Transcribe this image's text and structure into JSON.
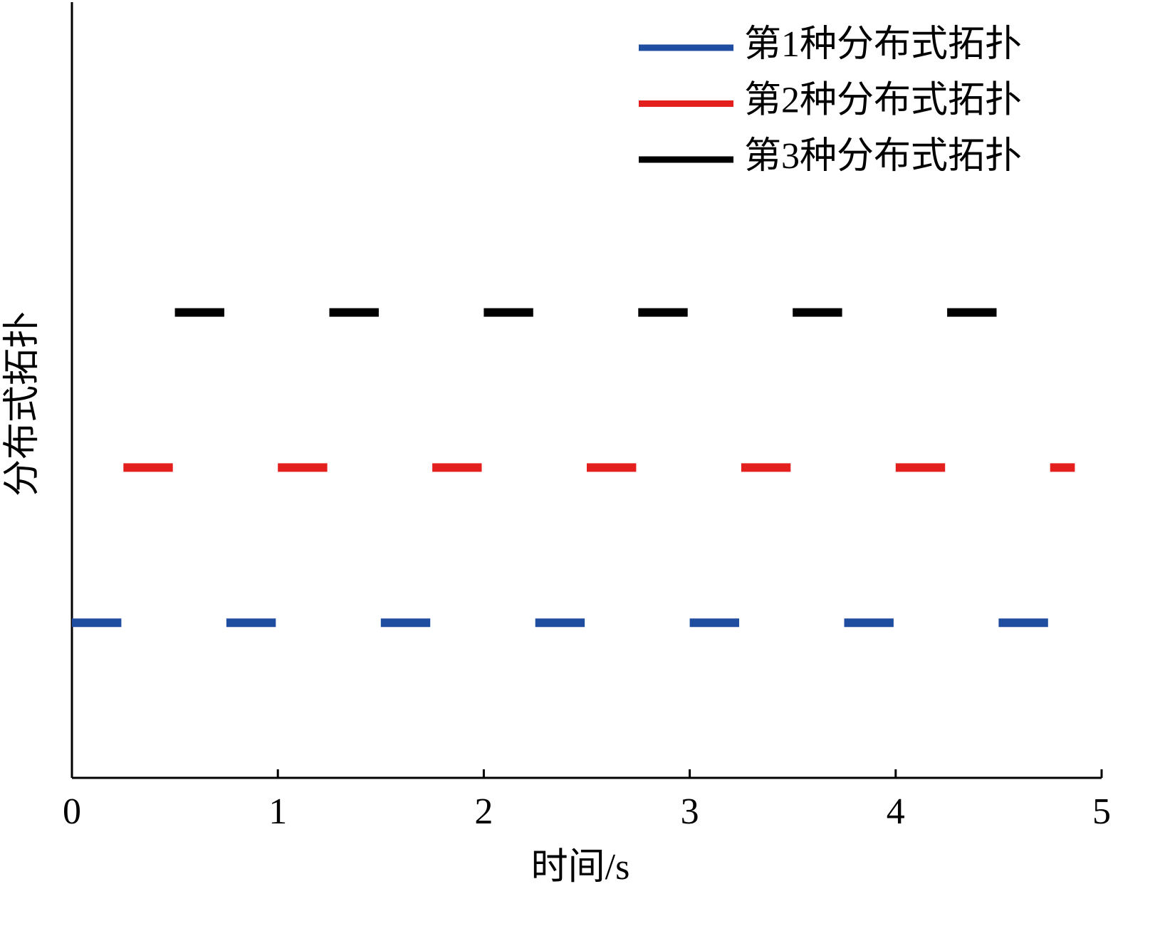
{
  "chart_data": {
    "type": "segment",
    "xlabel": "时间/s",
    "ylabel": "分布式拓扑",
    "xlim": [
      0,
      5
    ],
    "xticks": [
      0,
      1,
      2,
      3,
      4,
      5
    ],
    "ylim": [
      0,
      5
    ],
    "legend": "upper right",
    "series": [
      {
        "name": "第1种分布式拓扑",
        "color": "#1f4ea1",
        "y": 1,
        "segments": [
          [
            0,
            0.24
          ],
          [
            0.75,
            0.99
          ],
          [
            1.5,
            1.74
          ],
          [
            2.25,
            2.49
          ],
          [
            3.0,
            3.24
          ],
          [
            3.75,
            3.99
          ],
          [
            4.5,
            4.74
          ]
        ]
      },
      {
        "name": "第2种分布式拓扑",
        "color": "#e4201e",
        "y": 2,
        "segments": [
          [
            0.25,
            0.49
          ],
          [
            1.0,
            1.24
          ],
          [
            1.75,
            1.99
          ],
          [
            2.5,
            2.74
          ],
          [
            3.25,
            3.49
          ],
          [
            4.0,
            4.24
          ],
          [
            4.75,
            4.87
          ]
        ]
      },
      {
        "name": "第3种分布式拓扑",
        "color": "#000000",
        "y": 3,
        "segments": [
          [
            0.5,
            0.74
          ],
          [
            1.25,
            1.49
          ],
          [
            2.0,
            2.24
          ],
          [
            2.75,
            2.99
          ],
          [
            3.5,
            3.74
          ],
          [
            4.25,
            4.49
          ]
        ]
      }
    ]
  }
}
